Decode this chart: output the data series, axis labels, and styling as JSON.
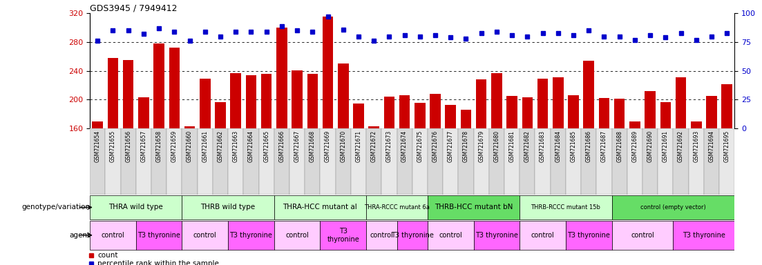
{
  "title": "GDS3945 / 7949412",
  "samples": [
    "GSM721654",
    "GSM721655",
    "GSM721656",
    "GSM721657",
    "GSM721658",
    "GSM721659",
    "GSM721660",
    "GSM721661",
    "GSM721662",
    "GSM721663",
    "GSM721664",
    "GSM721665",
    "GSM721666",
    "GSM721667",
    "GSM721668",
    "GSM721669",
    "GSM721670",
    "GSM721671",
    "GSM721672",
    "GSM721673",
    "GSM721674",
    "GSM721675",
    "GSM721676",
    "GSM721677",
    "GSM721678",
    "GSM721679",
    "GSM721680",
    "GSM721681",
    "GSM721682",
    "GSM721683",
    "GSM721684",
    "GSM721685",
    "GSM721686",
    "GSM721687",
    "GSM721688",
    "GSM721689",
    "GSM721690",
    "GSM721691",
    "GSM721692",
    "GSM721693",
    "GSM721694",
    "GSM721695"
  ],
  "bar_values": [
    170,
    258,
    255,
    203,
    278,
    272,
    163,
    229,
    197,
    237,
    234,
    236,
    300,
    241,
    236,
    315,
    250,
    195,
    163,
    204,
    206,
    196,
    208,
    193,
    186,
    228,
    237,
    205,
    203,
    229,
    231,
    206,
    254,
    202,
    201,
    170,
    212,
    197,
    231,
    170,
    205,
    222
  ],
  "percentile_values": [
    76,
    85,
    85,
    82,
    87,
    84,
    76,
    84,
    80,
    84,
    84,
    84,
    89,
    85,
    84,
    97,
    86,
    80,
    76,
    80,
    81,
    80,
    81,
    79,
    78,
    83,
    84,
    81,
    80,
    83,
    83,
    81,
    85,
    80,
    80,
    77,
    81,
    79,
    83,
    77,
    80,
    83
  ],
  "ylim_left": [
    160,
    320
  ],
  "ylim_right": [
    0,
    100
  ],
  "yticks_left": [
    160,
    200,
    240,
    280,
    320
  ],
  "yticks_right": [
    0,
    25,
    50,
    75,
    100
  ],
  "bar_color": "#cc0000",
  "dot_color": "#0000cc",
  "genotype_groups": [
    {
      "label": "THRA wild type",
      "start": 0,
      "end": 5,
      "color": "#ccffcc"
    },
    {
      "label": "THRB wild type",
      "start": 6,
      "end": 11,
      "color": "#ccffcc"
    },
    {
      "label": "THRA-HCC mutant al",
      "start": 12,
      "end": 17,
      "color": "#ccffcc"
    },
    {
      "label": "THRA-RCCC mutant 6a",
      "start": 18,
      "end": 21,
      "color": "#ccffcc"
    },
    {
      "label": "THRB-HCC mutant bN",
      "start": 22,
      "end": 27,
      "color": "#66dd66"
    },
    {
      "label": "THRB-RCCC mutant 15b",
      "start": 28,
      "end": 33,
      "color": "#ccffcc"
    },
    {
      "label": "control (empty vector)",
      "start": 34,
      "end": 41,
      "color": "#66dd66"
    }
  ],
  "agent_groups": [
    {
      "label": "control",
      "start": 0,
      "end": 2,
      "color": "#ffccff"
    },
    {
      "label": "T3 thyronine",
      "start": 3,
      "end": 5,
      "color": "#ff66ff"
    },
    {
      "label": "control",
      "start": 6,
      "end": 8,
      "color": "#ffccff"
    },
    {
      "label": "T3 thyronine",
      "start": 9,
      "end": 11,
      "color": "#ff66ff"
    },
    {
      "label": "control",
      "start": 12,
      "end": 14,
      "color": "#ffccff"
    },
    {
      "label": "T3\nthyronine",
      "start": 15,
      "end": 17,
      "color": "#ff66ff"
    },
    {
      "label": "control",
      "start": 18,
      "end": 19,
      "color": "#ffccff"
    },
    {
      "label": "T3 thyronine",
      "start": 20,
      "end": 21,
      "color": "#ff66ff"
    },
    {
      "label": "control",
      "start": 22,
      "end": 24,
      "color": "#ffccff"
    },
    {
      "label": "T3 thyronine",
      "start": 25,
      "end": 27,
      "color": "#ff66ff"
    },
    {
      "label": "control",
      "start": 28,
      "end": 30,
      "color": "#ffccff"
    },
    {
      "label": "T3 thyronine",
      "start": 31,
      "end": 33,
      "color": "#ff66ff"
    },
    {
      "label": "control",
      "start": 34,
      "end": 37,
      "color": "#ffccff"
    },
    {
      "label": "T3 thyronine",
      "start": 38,
      "end": 41,
      "color": "#ff66ff"
    }
  ],
  "tick_label_color_left": "#cc0000",
  "tick_label_color_right": "#0000cc",
  "sample_box_colors": [
    "#d8d8d8",
    "#e8e8e8"
  ]
}
